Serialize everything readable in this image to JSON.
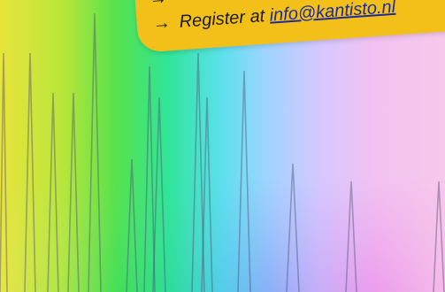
{
  "banner": {
    "lines": [
      {
        "arrow": "→",
        "text": ""
      },
      {
        "arrow": "→",
        "text": "Register at ",
        "link": "info@kantisto.nl"
      }
    ]
  },
  "colors": {
    "banner": "#f3c01a",
    "link": "#1d2b9c"
  }
}
